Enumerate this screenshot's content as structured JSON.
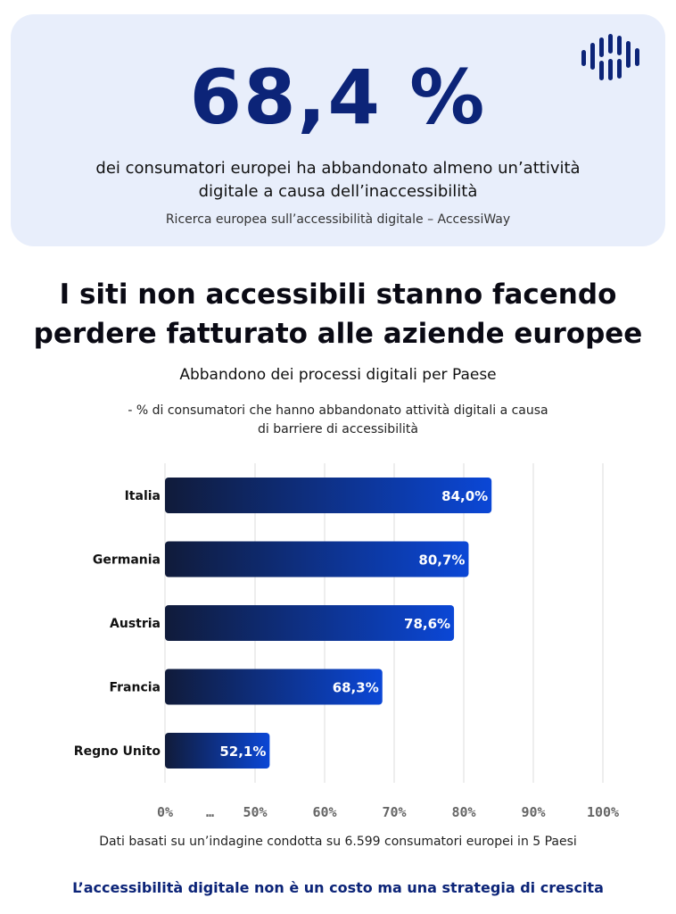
{
  "hero": {
    "stat": "68,4 %",
    "description_line1": "dei consumatori europei ha abbandonato almeno un’attività",
    "description_line2": "digitale a causa dell’inaccessibilità",
    "source": "Ricerca europea sull’accessibilità digitale – AccessiWay",
    "logo_icon": "wave-bars-icon",
    "accent_color": "#0c2478"
  },
  "headline": {
    "line1": "I siti non accessibili stanno facendo",
    "line2": "perdere fatturato alle aziende europee"
  },
  "chart_title": "Abbandono dei processi digitali per Paese",
  "chart_subtitle_line1": "- % di consumatori che hanno abbandonato attività digitali a causa",
  "chart_subtitle_line2": "di barriere di accessibilità",
  "chart_data": {
    "type": "bar",
    "orientation": "horizontal",
    "categories": [
      "Italia",
      "Germania",
      "Austria",
      "Francia",
      "Regno Unito"
    ],
    "values": [
      84.0,
      80.7,
      78.6,
      68.3,
      52.1
    ],
    "value_labels": [
      "84,0%",
      "80,7%",
      "78,6%",
      "68,3%",
      "52,1%"
    ],
    "x_ticks": [
      "0%",
      "...",
      "50%",
      "60%",
      "70%",
      "80%",
      "90%",
      "100%"
    ],
    "xlim": [
      0,
      100
    ],
    "axis_break": true,
    "grid": true,
    "bar_gradient": [
      "#101b3a",
      "#0b47d6"
    ]
  },
  "footnote": "Dati basati su un’indagine condotta su 6.599 consumatori europei in 5 Paesi",
  "tagline": "L’accessibilità digitale non è un costo ma una strategia di crescita"
}
